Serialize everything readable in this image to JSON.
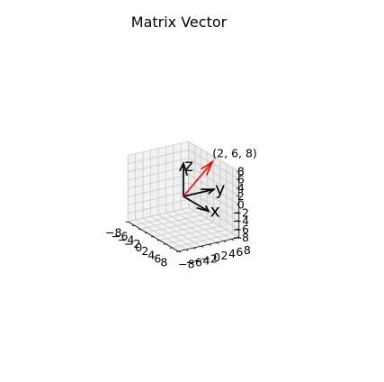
{
  "chart_data": {
    "type": "3d-quiver",
    "title": "Matrix Vector",
    "xlim": [
      -8,
      8
    ],
    "ylim": [
      -8,
      8
    ],
    "zlim": [
      -8,
      8
    ],
    "ticks": [
      -8,
      -6,
      -4,
      -2,
      0,
      2,
      4,
      6,
      8
    ],
    "x_tick_labels": [
      "−8",
      "−6",
      "−4",
      "−2",
      "0",
      "2",
      "4",
      "6",
      "8"
    ],
    "y_tick_labels": [
      "−8",
      "−6",
      "−4",
      "−2",
      "0",
      "2",
      "4",
      "6",
      "8"
    ],
    "z_tick_labels": [
      "−8",
      "−6",
      "−4",
      "−2",
      "0",
      "2",
      "4",
      "6",
      "8"
    ],
    "grid": true,
    "basis_vectors": [
      {
        "label": "x",
        "vector": [
          1,
          0,
          0
        ],
        "color": "#000000"
      },
      {
        "label": "y",
        "vector": [
          0,
          1,
          0
        ],
        "color": "#000000"
      },
      {
        "label": "z",
        "vector": [
          0,
          0,
          1
        ],
        "color": "#000000"
      }
    ],
    "vectors": [
      {
        "vector": [
          2,
          6,
          8
        ],
        "label": "(2, 6, 8)",
        "color": "#ff0000"
      }
    ]
  }
}
